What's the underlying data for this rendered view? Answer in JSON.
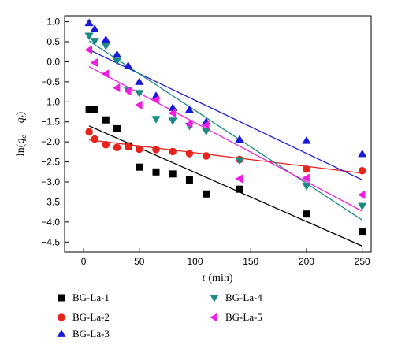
{
  "chart_data": {
    "type": "scatter",
    "xlabel_var": "t",
    "xlabel_unit": "(min)",
    "ylabel_prefix": "ln(",
    "ylabel_q1": "q",
    "ylabel_sub1": "e",
    "ylabel_minus": " − ",
    "ylabel_q2": "q",
    "ylabel_sub2": "t",
    "ylabel_suffix": ")",
    "xlim": [
      -17,
      258
    ],
    "ylim": [
      -4.75,
      1.15
    ],
    "x_ticks": [
      {
        "value": 0,
        "label": "0"
      },
      {
        "value": 50,
        "label": "50"
      },
      {
        "value": 100,
        "label": "100"
      },
      {
        "value": 150,
        "label": "150"
      },
      {
        "value": 200,
        "label": "200"
      },
      {
        "value": 250,
        "label": "250"
      }
    ],
    "y_ticks": [
      {
        "value": 1.0,
        "label": "1.0"
      },
      {
        "value": 0.5,
        "label": "0.5"
      },
      {
        "value": 0.0,
        "label": "0.0"
      },
      {
        "value": -0.5,
        "label": "−0.5"
      },
      {
        "value": -1.0,
        "label": "−1.0"
      },
      {
        "value": -1.5,
        "label": "−1.5"
      },
      {
        "value": -2.0,
        "label": "−2.0"
      },
      {
        "value": -2.5,
        "label": "−2.5"
      },
      {
        "value": -3.0,
        "label": "−3.0"
      },
      {
        "value": -3.5,
        "label": "−3.5"
      },
      {
        "value": -4.0,
        "label": "−4.0"
      },
      {
        "value": -4.5,
        "label": "−4.5"
      }
    ],
    "grid": false,
    "legend_position": "bottom",
    "series": [
      {
        "name": "BG-La-1",
        "marker": "square",
        "color": "#000000",
        "x": [
          5,
          10,
          20,
          30,
          40,
          50,
          65,
          80,
          95,
          110,
          140,
          200,
          250
        ],
        "y": [
          -1.2,
          -1.2,
          -1.45,
          -1.67,
          -2.1,
          -2.63,
          -2.75,
          -2.8,
          -2.95,
          -3.3,
          -3.18,
          -3.8,
          -4.25
        ],
        "fit": {
          "x": [
            5,
            250
          ],
          "y": [
            -1.6,
            -4.6
          ]
        }
      },
      {
        "name": "BG-La-2",
        "marker": "circle",
        "color": "#e8231b",
        "x": [
          5,
          10,
          20,
          30,
          40,
          50,
          65,
          80,
          95,
          110,
          140,
          200,
          250
        ],
        "y": [
          -1.75,
          -1.93,
          -2.07,
          -2.14,
          -2.12,
          -2.18,
          -2.19,
          -2.24,
          -2.29,
          -2.35,
          -2.44,
          -2.68,
          -2.72
        ],
        "fit": {
          "x": [
            5,
            250
          ],
          "y": [
            -1.95,
            -2.78
          ]
        }
      },
      {
        "name": "BG-La-3",
        "marker": "triangle-up",
        "color": "#1a1ad9",
        "x": [
          5,
          10,
          20,
          30,
          40,
          50,
          65,
          80,
          95,
          110,
          140,
          200,
          250
        ],
        "y": [
          0.97,
          0.82,
          0.55,
          0.18,
          -0.1,
          -0.5,
          -0.85,
          -1.15,
          -1.2,
          -1.5,
          -1.94,
          -1.97,
          -2.3
        ],
        "fit": {
          "x": [
            5,
            250
          ],
          "y": [
            0.3,
            -2.95
          ]
        }
      },
      {
        "name": "BG-La-4",
        "marker": "triangle-down",
        "color": "#1b8a82",
        "x": [
          5,
          10,
          20,
          30,
          40,
          50,
          65,
          80,
          95,
          110,
          140,
          200,
          250
        ],
        "y": [
          0.65,
          0.52,
          0.4,
          0.02,
          -0.72,
          -0.78,
          -1.43,
          -1.47,
          -1.6,
          -1.73,
          -2.46,
          -3.1,
          -3.6
        ],
        "fit": {
          "x": [
            5,
            250
          ],
          "y": [
            0.52,
            -3.95
          ]
        }
      },
      {
        "name": "BG-La-5",
        "marker": "triangle-left",
        "color": "#ee1fe0",
        "x": [
          5,
          10,
          20,
          30,
          40,
          50,
          65,
          80,
          95,
          110,
          140,
          200,
          250
        ],
        "y": [
          0.3,
          -0.02,
          -0.3,
          -0.65,
          -0.73,
          -1.08,
          -0.95,
          -1.28,
          -1.55,
          -1.58,
          -2.92,
          -2.9,
          -3.32
        ],
        "fit": {
          "x": [
            5,
            250
          ],
          "y": [
            -0.12,
            -3.73
          ]
        }
      }
    ]
  }
}
